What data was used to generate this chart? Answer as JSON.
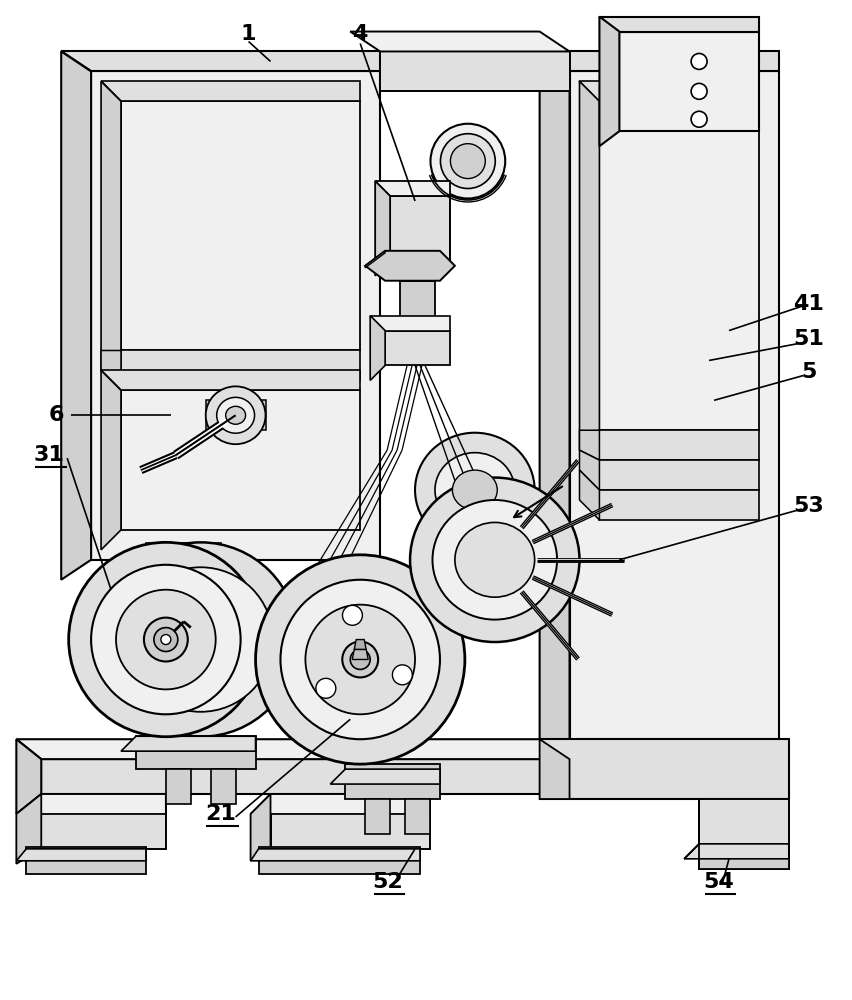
{
  "bg_color": "#ffffff",
  "lc": "#000000",
  "figsize": [
    8.52,
    10.0
  ],
  "dpi": 100,
  "gray1": "#f0f0f0",
  "gray2": "#e0e0e0",
  "gray3": "#d0d0d0",
  "gray4": "#c0c0c0",
  "gray5": "#b0b0b0",
  "gray6": "#a0a0a0"
}
